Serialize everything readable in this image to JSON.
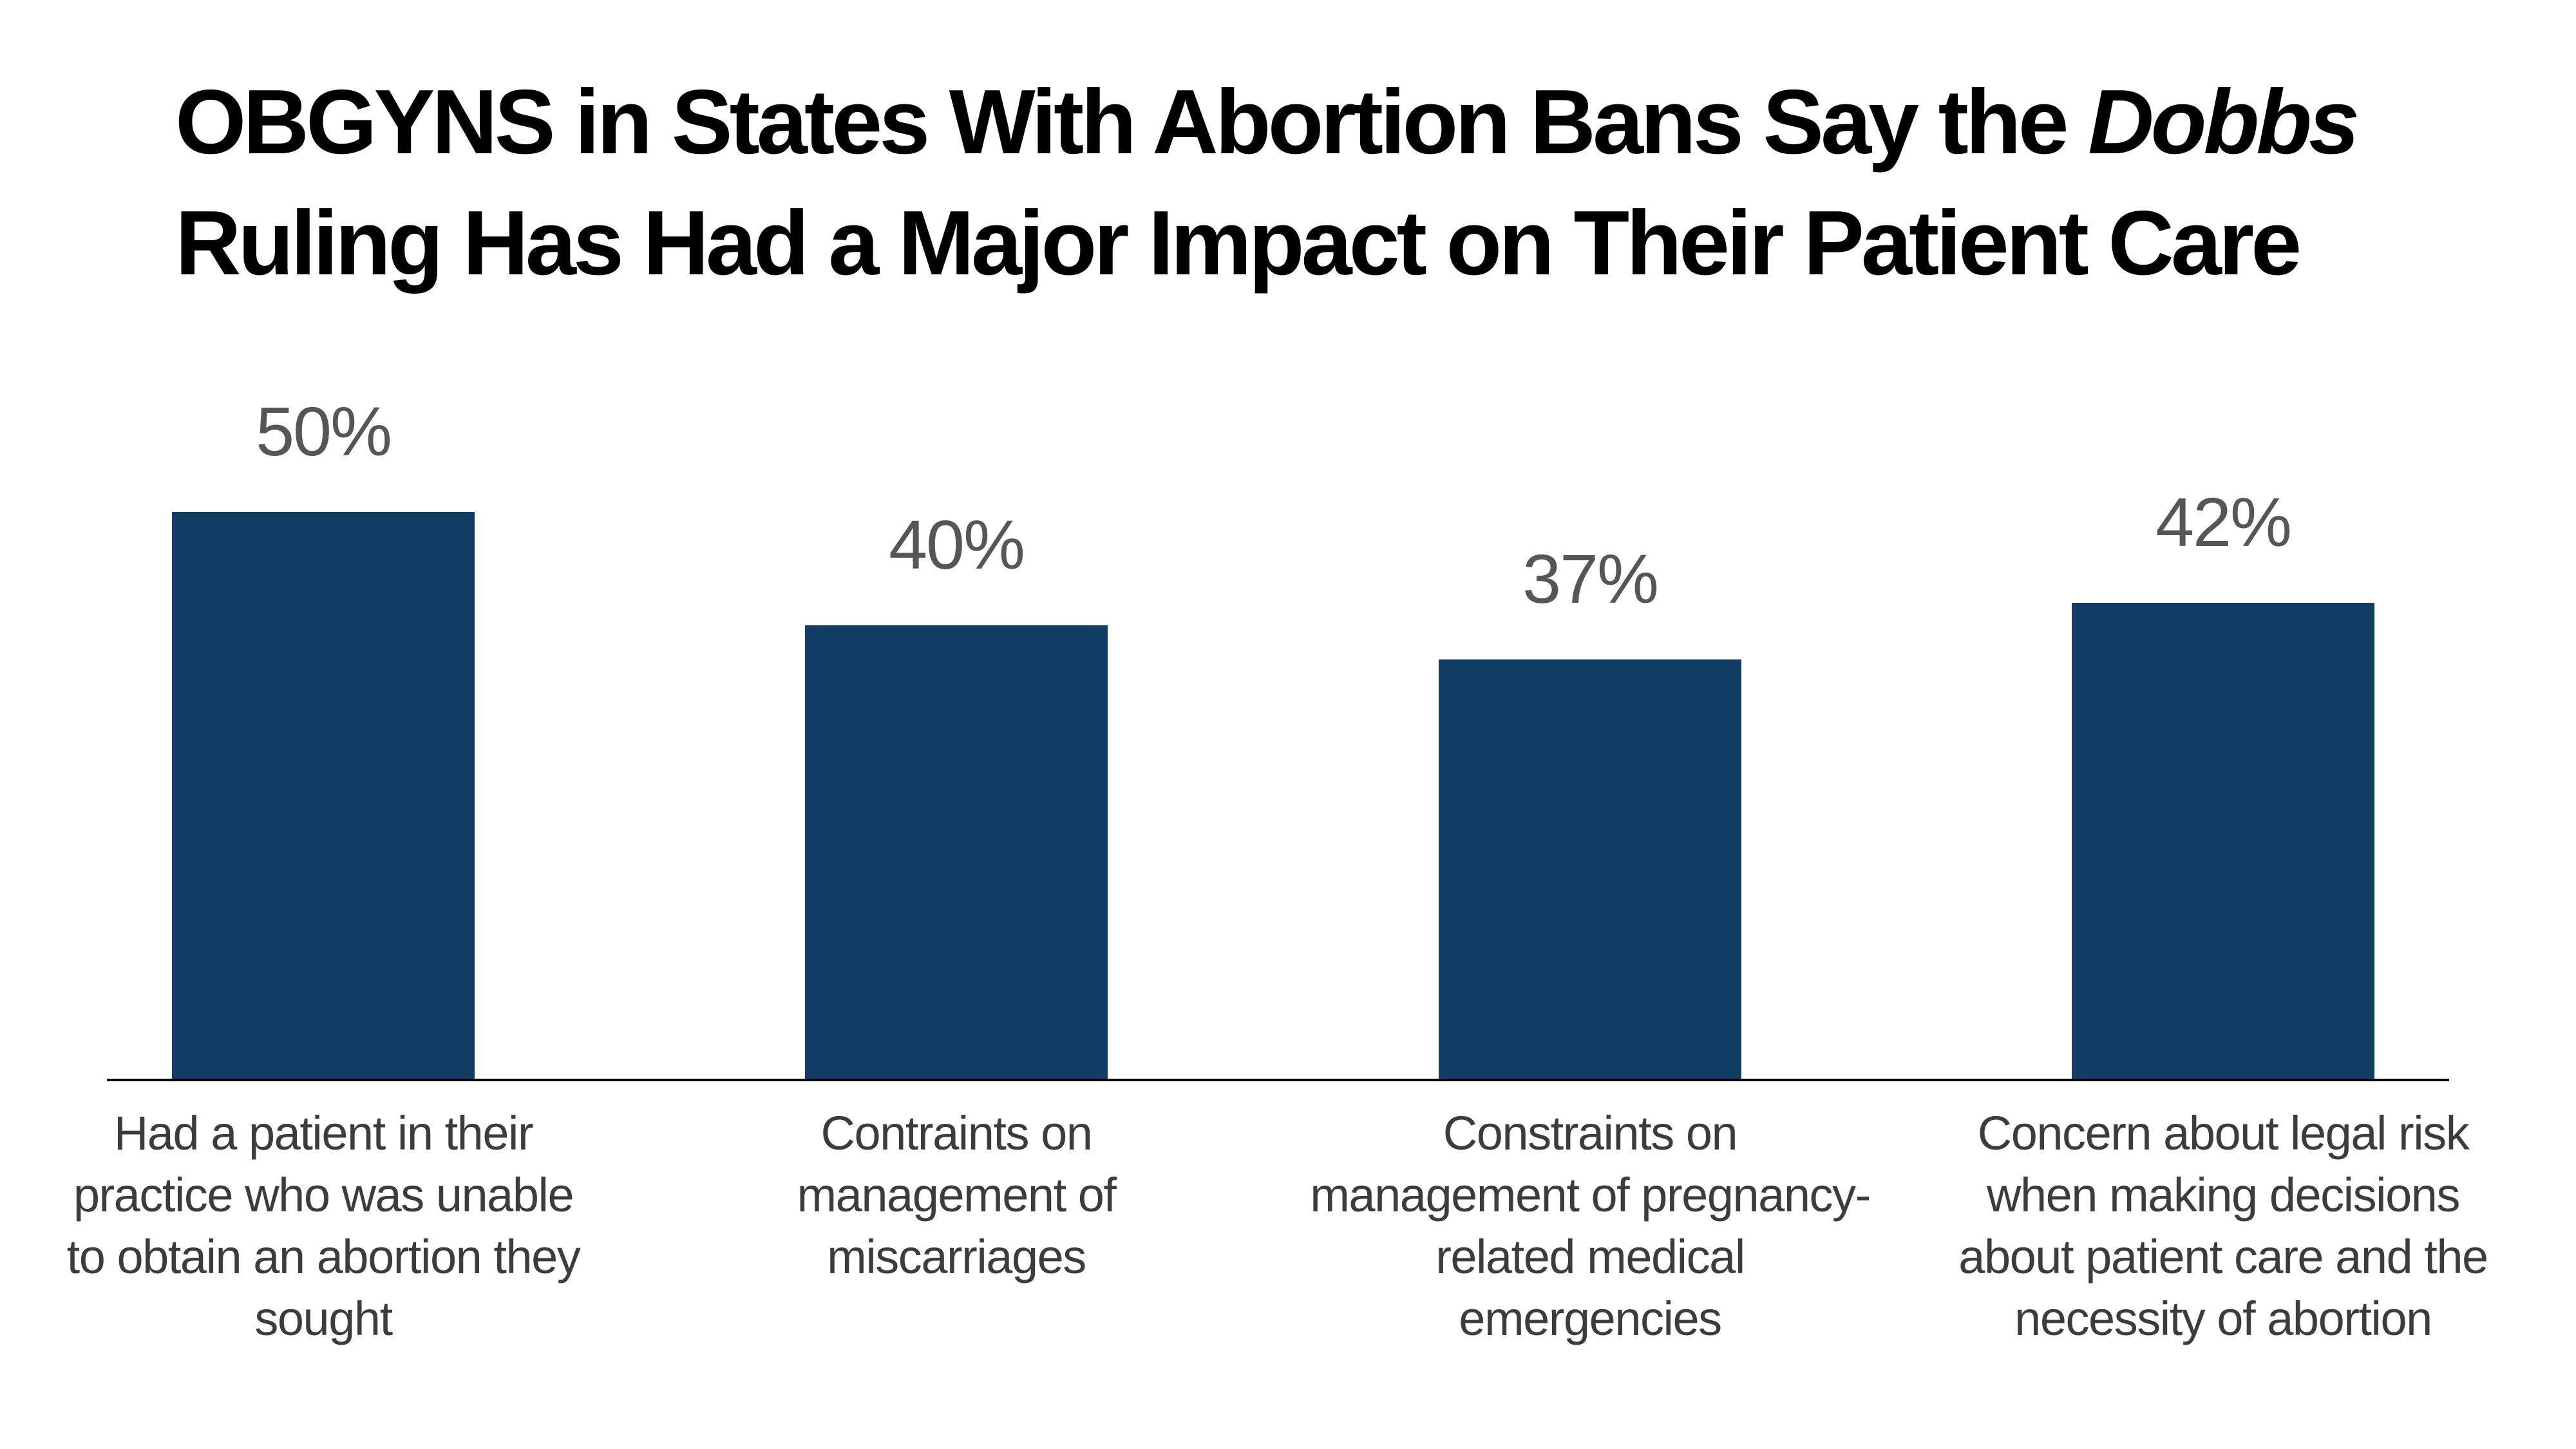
{
  "title": {
    "line1_prefix": "OBGYNS in States With Abortion Bans Say the ",
    "line1_italic": "Dobbs",
    "line2": "Ruling Has Had a Major Impact on Their Patient Care"
  },
  "chart_data": {
    "type": "bar",
    "title": "OBGYNS in States With Abortion Bans Say the Dobbs Ruling Has Had a Major Impact on Their Patient Care",
    "xlabel": "",
    "ylabel": "",
    "unit": "%",
    "ylim": [
      0,
      50
    ],
    "grid": "off",
    "legend": "none",
    "bar_color": "#123D64",
    "axis_line_color": "#000000",
    "value_label_color": "#565656",
    "category_label_color": "#3C3C3C",
    "categories": [
      {
        "label_lines": [
          "Had a patient in their",
          "practice who was unable",
          "to obtain an abortion they",
          "sought"
        ],
        "value": 50,
        "display_value": "50%"
      },
      {
        "label_lines": [
          "Contraints on",
          "management of",
          "miscarriages"
        ],
        "value": 40,
        "display_value": "40%"
      },
      {
        "label_lines": [
          "Constraints on",
          "management of pregnancy-",
          "related medical",
          "emergencies"
        ],
        "value": 37,
        "display_value": "37%"
      },
      {
        "label_lines": [
          "Concern about legal risk",
          "when making decisions",
          "about patient care and the",
          "necessity of abortion"
        ],
        "value": 42,
        "display_value": "42%"
      }
    ]
  }
}
